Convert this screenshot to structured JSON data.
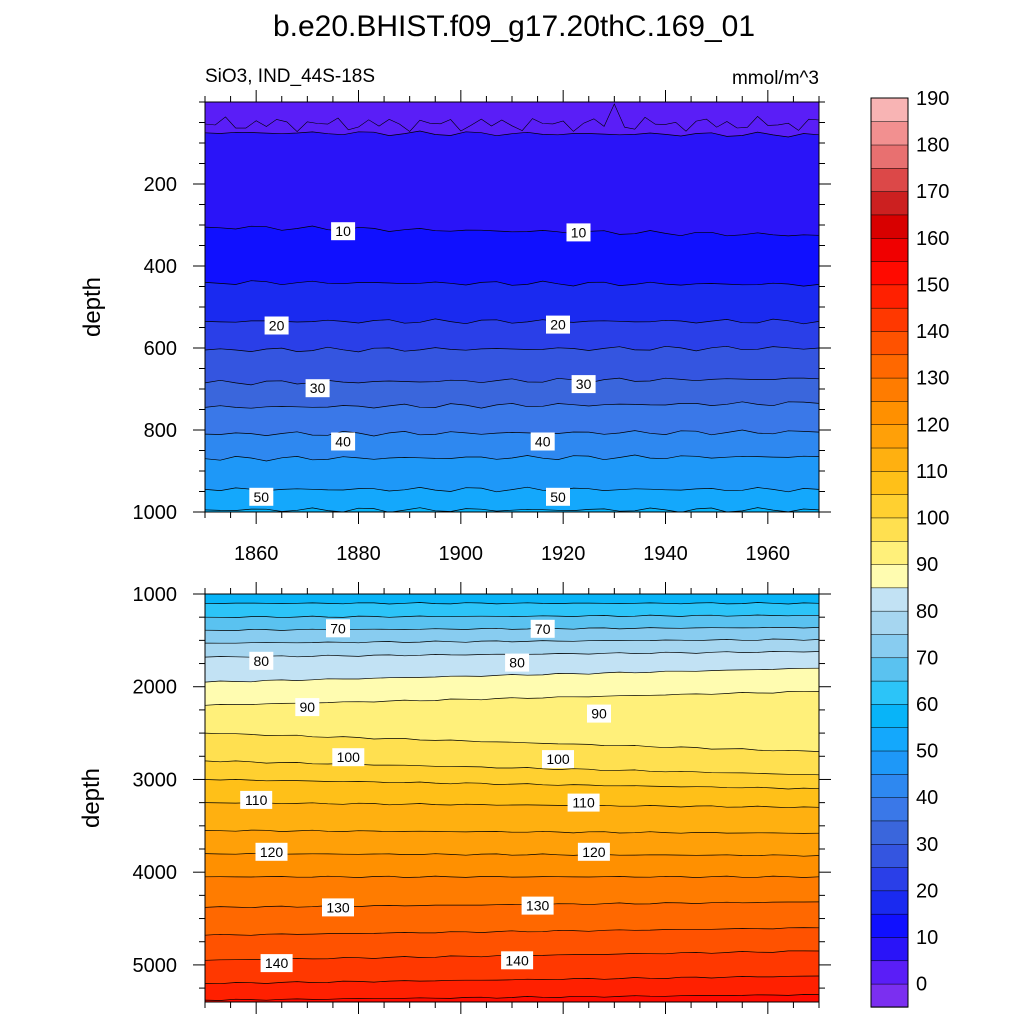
{
  "chart_data": {
    "type": "contour",
    "title": "b.e20.BHIST.f09_g17.20thC.169_01",
    "subtitle_left": "SiO3, IND_44S-18S",
    "units": "mmol/m^3",
    "panels": [
      {
        "id": "upper",
        "ylabel": "depth",
        "ylim": [
          0,
          1000
        ],
        "yticks": [
          "200",
          "400",
          "600",
          "800",
          "1000"
        ],
        "ytick_values": [
          200,
          400,
          600,
          800,
          1000
        ],
        "xlim": [
          1850,
          1970
        ],
        "xticks": [
          "1860",
          "1880",
          "1900",
          "1920",
          "1940",
          "1960"
        ],
        "xtick_values": [
          1860,
          1880,
          1900,
          1920,
          1940,
          1960
        ],
        "contours": [
          {
            "value": 5,
            "depth_start": 75,
            "depth_end": 80
          },
          {
            "value": 10,
            "depth_start": 305,
            "depth_end": 325
          },
          {
            "value": 15,
            "depth_start": 440,
            "depth_end": 445
          },
          {
            "value": 20,
            "depth_start": 535,
            "depth_end": 535
          },
          {
            "value": 25,
            "depth_start": 605,
            "depth_end": 600
          },
          {
            "value": 30,
            "depth_start": 685,
            "depth_end": 675
          },
          {
            "value": 35,
            "depth_start": 745,
            "depth_end": 735
          },
          {
            "value": 40,
            "depth_start": 810,
            "depth_end": 805
          },
          {
            "value": 45,
            "depth_start": 870,
            "depth_end": 865
          },
          {
            "value": 50,
            "depth_start": 945,
            "depth_end": 945
          },
          {
            "value": 55,
            "depth_start": 995,
            "depth_end": 995
          }
        ],
        "contour_labels": [
          {
            "text": "10",
            "year": 1877,
            "depth": 315
          },
          {
            "text": "10",
            "year": 1923,
            "depth": 318
          },
          {
            "text": "20",
            "year": 1864,
            "depth": 545
          },
          {
            "text": "20",
            "year": 1919,
            "depth": 543
          },
          {
            "text": "30",
            "year": 1872,
            "depth": 698
          },
          {
            "text": "30",
            "year": 1924,
            "depth": 688
          },
          {
            "text": "40",
            "year": 1877,
            "depth": 828
          },
          {
            "text": "40",
            "year": 1916,
            "depth": 828
          },
          {
            "text": "50",
            "year": 1861,
            "depth": 963
          },
          {
            "text": "50",
            "year": 1919,
            "depth": 963
          }
        ]
      },
      {
        "id": "lower",
        "ylabel": "depth",
        "ylim": [
          1000,
          5400
        ],
        "yticks": [
          "1000",
          "2000",
          "3000",
          "4000",
          "5000"
        ],
        "ytick_values": [
          1000,
          2000,
          3000,
          4000,
          5000
        ],
        "xlim": [
          1850,
          1970
        ],
        "contours": [
          {
            "value": 60,
            "depth_start": 1100,
            "depth_end": 1100
          },
          {
            "value": 65,
            "depth_start": 1250,
            "depth_end": 1230
          },
          {
            "value": 70,
            "depth_start": 1390,
            "depth_end": 1360
          },
          {
            "value": 75,
            "depth_start": 1530,
            "depth_end": 1490
          },
          {
            "value": 80,
            "depth_start": 1680,
            "depth_end": 1620
          },
          {
            "value": 85,
            "depth_start": 1950,
            "depth_end": 1800
          },
          {
            "value": 90,
            "depth_start": 2200,
            "depth_end": 2050
          },
          {
            "value": 95,
            "depth_start": 2500,
            "depth_end": 2700
          },
          {
            "value": 100,
            "depth_start": 2800,
            "depth_end": 2950
          },
          {
            "value": 105,
            "depth_start": 3000,
            "depth_end": 3100
          },
          {
            "value": 110,
            "depth_start": 3250,
            "depth_end": 3300
          },
          {
            "value": 115,
            "depth_start": 3550,
            "depth_end": 3580
          },
          {
            "value": 120,
            "depth_start": 3800,
            "depth_end": 3820
          },
          {
            "value": 125,
            "depth_start": 4050,
            "depth_end": 4050
          },
          {
            "value": 130,
            "depth_start": 4380,
            "depth_end": 4320
          },
          {
            "value": 135,
            "depth_start": 4680,
            "depth_end": 4600
          },
          {
            "value": 140,
            "depth_start": 4950,
            "depth_end": 4850
          },
          {
            "value": 145,
            "depth_start": 5200,
            "depth_end": 5120
          },
          {
            "value": 150,
            "depth_start": 5380,
            "depth_end": 5320
          }
        ],
        "contour_labels": [
          {
            "text": "70",
            "year": 1876,
            "depth": 1370
          },
          {
            "text": "70",
            "year": 1916,
            "depth": 1375
          },
          {
            "text": "80",
            "year": 1861,
            "depth": 1720
          },
          {
            "text": "80",
            "year": 1911,
            "depth": 1740
          },
          {
            "text": "90",
            "year": 1870,
            "depth": 2220
          },
          {
            "text": "90",
            "year": 1927,
            "depth": 2290
          },
          {
            "text": "100",
            "year": 1878,
            "depth": 2760
          },
          {
            "text": "100",
            "year": 1919,
            "depth": 2780
          },
          {
            "text": "110",
            "year": 1860,
            "depth": 3220
          },
          {
            "text": "110",
            "year": 1924,
            "depth": 3250
          },
          {
            "text": "120",
            "year": 1863,
            "depth": 3780
          },
          {
            "text": "120",
            "year": 1926,
            "depth": 3780
          },
          {
            "text": "130",
            "year": 1876,
            "depth": 4380
          },
          {
            "text": "130",
            "year": 1915,
            "depth": 4360
          },
          {
            "text": "140",
            "year": 1864,
            "depth": 4980
          },
          {
            "text": "140",
            "year": 1911,
            "depth": 4950
          }
        ]
      }
    ],
    "colorbar": {
      "levels": [
        -5,
        0,
        5,
        10,
        15,
        20,
        25,
        30,
        35,
        40,
        45,
        50,
        55,
        60,
        65,
        70,
        75,
        80,
        85,
        90,
        95,
        100,
        105,
        110,
        115,
        120,
        125,
        130,
        135,
        140,
        145,
        150,
        155,
        160,
        165,
        170,
        175,
        180,
        185,
        190,
        195
      ],
      "tick_labels": [
        "0",
        "10",
        "20",
        "30",
        "40",
        "50",
        "60",
        "70",
        "80",
        "90",
        "100",
        "110",
        "120",
        "130",
        "140",
        "150",
        "160",
        "170",
        "180",
        "190"
      ],
      "tick_values": [
        0,
        10,
        20,
        30,
        40,
        50,
        60,
        70,
        80,
        90,
        100,
        110,
        120,
        130,
        140,
        150,
        160,
        170,
        180,
        190
      ],
      "colors": [
        "#7b2ff0",
        "#5a1ef7",
        "#2a14f8",
        "#1010ff",
        "#1a2af0",
        "#2a3fe8",
        "#3455e0",
        "#3a66dc",
        "#3a78e8",
        "#2e88f0",
        "#1e98f8",
        "#14a8fc",
        "#08b4f8",
        "#2cc4f8",
        "#5ac2f0",
        "#88ccf0",
        "#a6d6f0",
        "#c2e2f4",
        "#fffcb0",
        "#fff07a",
        "#ffe050",
        "#ffd030",
        "#ffc018",
        "#ffb010",
        "#ffa008",
        "#ff9000",
        "#ff7c00",
        "#ff6800",
        "#ff5200",
        "#ff3800",
        "#ff2000",
        "#ff0a00",
        "#f00000",
        "#d80000",
        "#cc2020",
        "#dc4848",
        "#e87070",
        "#f29090",
        "#f8b4b4"
      ]
    }
  }
}
